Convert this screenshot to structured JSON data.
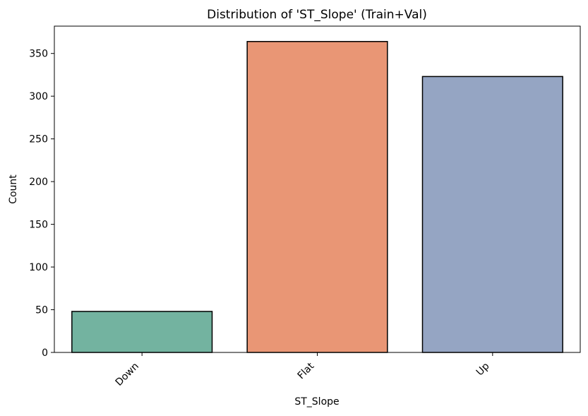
{
  "chart_data": {
    "type": "bar",
    "title": "Distribution of 'ST_Slope' (Train+Val)",
    "xlabel": "ST_Slope",
    "ylabel": "Count",
    "categories": [
      "Down",
      "Flat",
      "Up"
    ],
    "values": [
      48,
      364,
      323
    ],
    "colors": [
      "#73b3a0",
      "#e99675",
      "#95a5c3"
    ],
    "edge_color": "#000000",
    "ylim": [
      0,
      382
    ],
    "yticks": [
      0,
      50,
      100,
      150,
      200,
      250,
      300,
      350
    ],
    "xtick_rotation_deg": 45,
    "grid": false,
    "legend": "none"
  }
}
